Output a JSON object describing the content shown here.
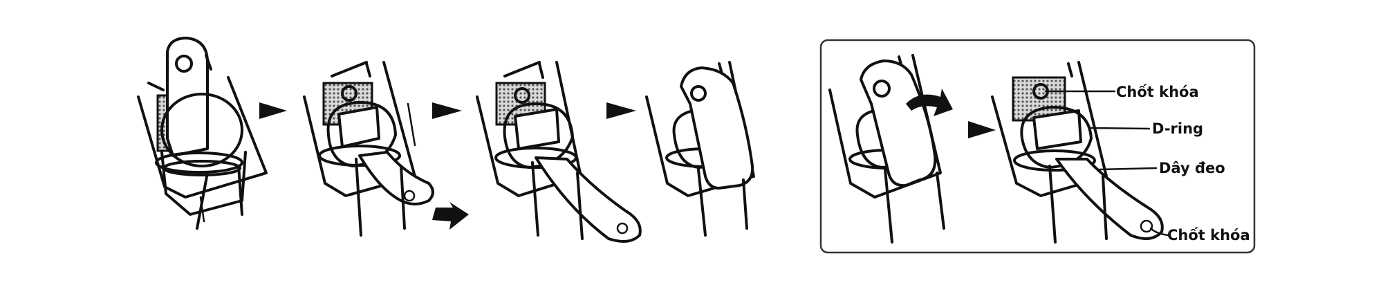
{
  "labels": {
    "lock_pin_top": "Chốt khóa",
    "d_ring": "D-ring",
    "strap": "Dây đeo",
    "lock_pin_bottom": "Chốt khóa"
  },
  "colors": {
    "ink": "#111111",
    "background": "#ffffff",
    "mesh": "#bdbdbd"
  }
}
